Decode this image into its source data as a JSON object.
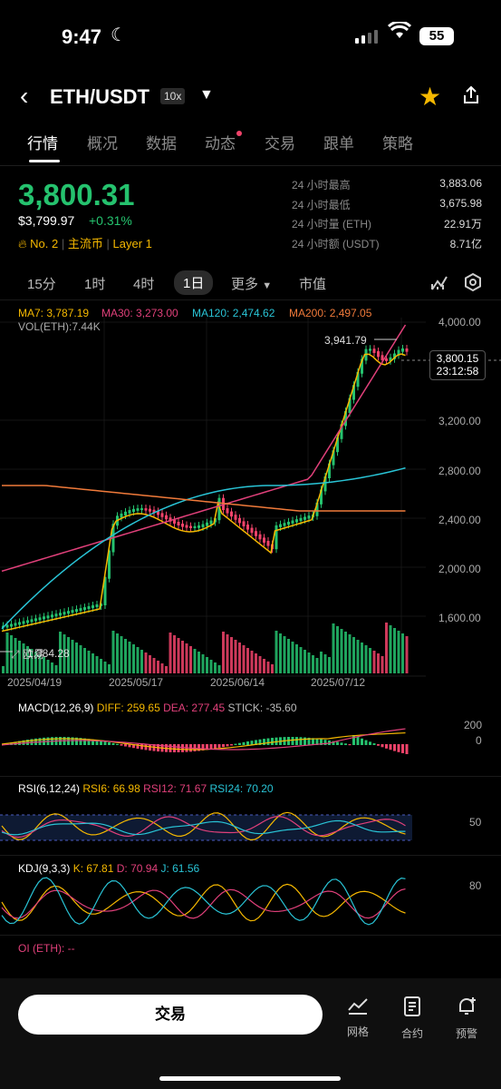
{
  "status": {
    "time": "9:47",
    "battery": "55"
  },
  "header": {
    "pair": "ETH/USDT",
    "leverage": "10x"
  },
  "tabs": [
    "行情",
    "概况",
    "数据",
    "动态",
    "交易",
    "跟单",
    "策略"
  ],
  "price": {
    "last": "3,800.31",
    "usd": "$3,799.97",
    "change": "+0.31%",
    "rank": "No. 2",
    "category": "主流币",
    "layer": "Layer 1"
  },
  "stats": [
    {
      "label": "24 小时最高",
      "value": "3,883.06"
    },
    {
      "label": "24 小时最低",
      "value": "3,675.98"
    },
    {
      "label": "24 小时量 (ETH)",
      "value": "22.91万"
    },
    {
      "label": "24 小时额 (USDT)",
      "value": "8.71亿"
    }
  ],
  "timeframes": [
    "15分",
    "1时",
    "4时",
    "1日",
    "更多",
    "市值"
  ],
  "ma_labels": [
    {
      "text": "MA7: 3,787.19",
      "color": "#f5b800"
    },
    {
      "text": "MA30: 3,273.00",
      "color": "#e0407a"
    },
    {
      "text": "MA120: 2,474.62",
      "color": "#29c4d6"
    },
    {
      "text": "MA200: 2,497.05",
      "color": "#f07a3a"
    }
  ],
  "vol_label": "VOL(ETH):7.44K",
  "chart_data": {
    "type": "candlestick",
    "price_axis": [
      "4,000.00",
      "3,600.00",
      "3,200.00",
      "2,800.00",
      "2,400.00",
      "2,000.00",
      "1,600.00"
    ],
    "date_axis": [
      "2025/04/19",
      "2025/05/17",
      "2025/06/14",
      "2025/07/12"
    ],
    "high_marker": "3,941.79",
    "low_marker": "1,384.28",
    "current_price": "3,800.15",
    "countdown": "23:12:58",
    "colors": {
      "up": "#25c26e",
      "down": "#f0436a"
    }
  },
  "macd": {
    "label": "MACD(12,26,9)",
    "diff": "DIFF: 259.65",
    "dea": "DEA: 277.45",
    "stick": "STICK: -35.60",
    "axis": [
      "200",
      "0"
    ]
  },
  "rsi": {
    "label": "RSI(6,12,24)",
    "rsi6": "RSI6: 66.98",
    "rsi12": "RSI12: 71.67",
    "rsi24": "RSI24: 70.20",
    "axis": [
      "50"
    ]
  },
  "kdj": {
    "label": "KDJ(9,3,3)",
    "k": "K: 67.81",
    "d": "D: 70.94",
    "j": "J: 61.56",
    "axis": [
      "80"
    ]
  },
  "oi": {
    "label": "OI (ETH): --"
  },
  "bottom": {
    "trade": "交易",
    "nav": [
      "网格",
      "合约",
      "预警"
    ]
  }
}
